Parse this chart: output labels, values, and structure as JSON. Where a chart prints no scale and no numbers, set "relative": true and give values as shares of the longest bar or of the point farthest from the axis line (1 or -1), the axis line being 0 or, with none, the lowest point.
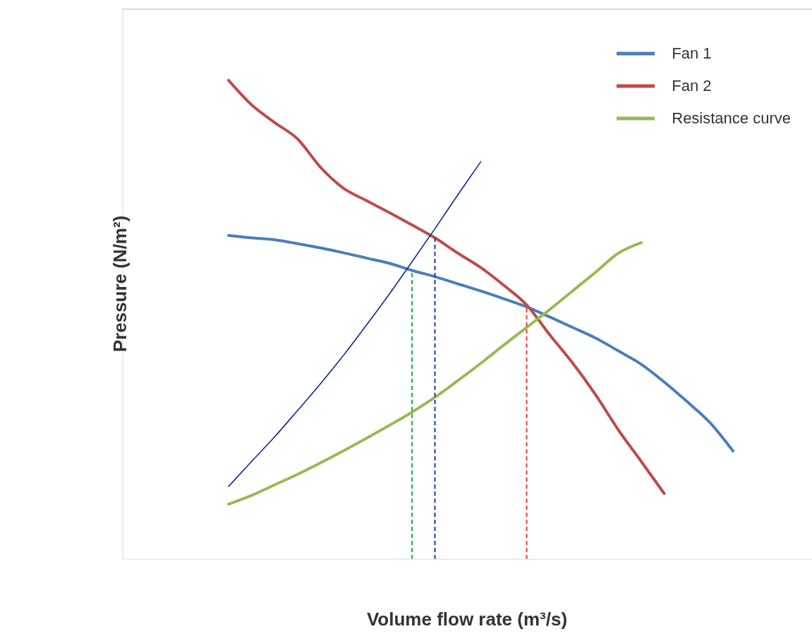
{
  "chart_data": {
    "type": "line",
    "relative": true,
    "xlabel": "Volume flow rate (m³/s)",
    "ylabel": "Pressure (N/m²)",
    "legend": "top right",
    "marker": "none",
    "categories": [
      null,
      null,
      null,
      null,
      null,
      null,
      null,
      null,
      null,
      null,
      null,
      null,
      null,
      null,
      null,
      null,
      null,
      null,
      null,
      null,
      null,
      null,
      null
    ],
    "series": [
      {
        "name": "Fan 1",
        "color": "#4a7ebb",
        "values": [
          0.676,
          0.671,
          0.667,
          0.659,
          0.65,
          0.64,
          0.629,
          0.618,
          0.603,
          0.59,
          0.575,
          0.56,
          0.544,
          0.527,
          0.506,
          0.484,
          0.462,
          0.435,
          0.407,
          0.37,
          0.329,
          0.285,
          0.226
        ]
      },
      {
        "name": "Fan 2",
        "color": "#be4b48",
        "values": [
          1,
          0.949,
          0.912,
          0.878,
          0.819,
          0.775,
          0.749,
          0.724,
          0.698,
          0.671,
          0.639,
          0.609,
          0.572,
          0.531,
          0.469,
          0.41,
          0.344,
          0.27,
          0.204,
          0.137,
          null,
          null,
          null
        ]
      },
      {
        "name": "Resistance curve",
        "color": "#98b954",
        "values": [
          0.115,
          0.133,
          0.155,
          0.177,
          0.201,
          0.226,
          0.252,
          0.279,
          0.307,
          0.338,
          0.373,
          0.409,
          0.447,
          0.484,
          0.521,
          0.56,
          0.599,
          0.639,
          0.661,
          null,
          null,
          null,
          null
        ]
      },
      {
        "color": "#0b2a8f",
        "values": [
          0.152,
          0.204,
          0.255,
          0.31,
          0.366,
          0.425,
          0.488,
          0.553,
          0.621,
          0.69,
          0.761,
          0.83,
          null,
          null,
          null,
          null,
          null,
          null,
          null,
          null,
          null,
          null,
          null
        ]
      }
    ]
  }
}
